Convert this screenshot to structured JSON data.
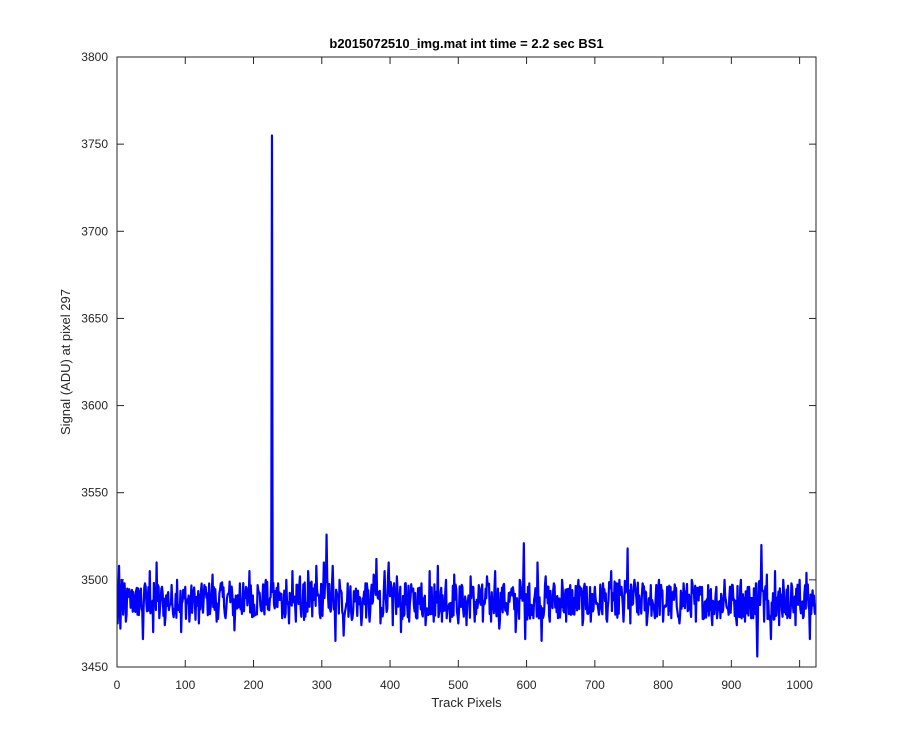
{
  "chart_data": {
    "type": "line",
    "title": "b2015072510_img.mat int time = 2.2 sec   BS1",
    "xlabel": "Track Pixels",
    "ylabel": "Signal (ADU) at pixel 297",
    "xlim": [
      0,
      1024
    ],
    "ylim": [
      3450,
      3800
    ],
    "xticks": [
      0,
      100,
      200,
      300,
      400,
      500,
      600,
      700,
      800,
      900,
      1000
    ],
    "yticks": [
      3450,
      3500,
      3550,
      3600,
      3650,
      3700,
      3750,
      3800
    ],
    "grid": false,
    "legend": "none",
    "colors": {
      "series": "#0000ff",
      "axes": "#262626",
      "background": "#ffffff"
    },
    "series": [
      {
        "n_points": 1024,
        "baseline": 3488,
        "noise_spread": 13,
        "points": [
          [
            0,
            3488
          ],
          [
            1,
            3475
          ],
          [
            3,
            3508
          ],
          [
            5,
            3472
          ],
          [
            7,
            3500
          ],
          [
            9,
            3480
          ],
          [
            11,
            3498
          ],
          [
            13,
            3476
          ],
          [
            16,
            3490
          ],
          [
            20,
            3484
          ],
          [
            24,
            3493
          ],
          [
            30,
            3480
          ],
          [
            35,
            3495
          ],
          [
            38,
            3466
          ],
          [
            41,
            3498
          ],
          [
            44,
            3482
          ],
          [
            48,
            3505
          ],
          [
            53,
            3470
          ],
          [
            58,
            3510
          ],
          [
            62,
            3478
          ],
          [
            66,
            3496
          ],
          [
            70,
            3474
          ],
          [
            75,
            3493
          ],
          [
            82,
            3481
          ],
          [
            88,
            3500
          ],
          [
            94,
            3470
          ],
          [
            100,
            3496
          ],
          [
            106,
            3476
          ],
          [
            112,
            3493
          ],
          [
            120,
            3475
          ],
          [
            128,
            3497
          ],
          [
            134,
            3482
          ],
          [
            140,
            3503
          ],
          [
            146,
            3476
          ],
          [
            152,
            3498
          ],
          [
            158,
            3480
          ],
          [
            165,
            3499
          ],
          [
            172,
            3471
          ],
          [
            180,
            3498
          ],
          [
            186,
            3482
          ],
          [
            194,
            3505
          ],
          [
            200,
            3479
          ],
          [
            206,
            3497
          ],
          [
            212,
            3482
          ],
          [
            218,
            3500
          ],
          [
            222,
            3484
          ],
          [
            225,
            3490
          ],
          [
            226,
            3500
          ],
          [
            227,
            3755
          ],
          [
            228,
            3493
          ],
          [
            230,
            3486
          ],
          [
            236,
            3498
          ],
          [
            242,
            3478
          ],
          [
            248,
            3500
          ],
          [
            252,
            3475
          ],
          [
            257,
            3505
          ],
          [
            262,
            3476
          ],
          [
            268,
            3502
          ],
          [
            274,
            3477
          ],
          [
            280,
            3505
          ],
          [
            286,
            3479
          ],
          [
            292,
            3508
          ],
          [
            298,
            3478
          ],
          [
            303,
            3510
          ],
          [
            307,
            3526
          ],
          [
            310,
            3484
          ],
          [
            316,
            3508
          ],
          [
            320,
            3465
          ],
          [
            326,
            3500
          ],
          [
            332,
            3468
          ],
          [
            338,
            3498
          ],
          [
            344,
            3477
          ],
          [
            350,
            3495
          ],
          [
            358,
            3474
          ],
          [
            364,
            3498
          ],
          [
            370,
            3476
          ],
          [
            376,
            3503
          ],
          [
            380,
            3512
          ],
          [
            386,
            3475
          ],
          [
            392,
            3505
          ],
          [
            398,
            3510
          ],
          [
            404,
            3474
          ],
          [
            410,
            3502
          ],
          [
            416,
            3470
          ],
          [
            422,
            3498
          ],
          [
            428,
            3476
          ],
          [
            434,
            3495
          ],
          [
            440,
            3478
          ],
          [
            446,
            3498
          ],
          [
            452,
            3474
          ],
          [
            458,
            3505
          ],
          [
            464,
            3476
          ],
          [
            470,
            3508
          ],
          [
            476,
            3476
          ],
          [
            482,
            3500
          ],
          [
            488,
            3476
          ],
          [
            494,
            3503
          ],
          [
            500,
            3475
          ],
          [
            506,
            3496
          ],
          [
            512,
            3474
          ],
          [
            518,
            3502
          ],
          [
            524,
            3476
          ],
          [
            530,
            3497
          ],
          [
            536,
            3476
          ],
          [
            542,
            3502
          ],
          [
            548,
            3476
          ],
          [
            554,
            3505
          ],
          [
            560,
            3472
          ],
          [
            566,
            3497
          ],
          [
            572,
            3480
          ],
          [
            578,
            3495
          ],
          [
            584,
            3470
          ],
          [
            590,
            3500
          ],
          [
            594,
            3488
          ],
          [
            596,
            3521
          ],
          [
            598,
            3466
          ],
          [
            604,
            3498
          ],
          [
            610,
            3478
          ],
          [
            616,
            3510
          ],
          [
            622,
            3465
          ],
          [
            628,
            3502
          ],
          [
            634,
            3476
          ],
          [
            640,
            3498
          ],
          [
            646,
            3478
          ],
          [
            652,
            3500
          ],
          [
            658,
            3476
          ],
          [
            664,
            3497
          ],
          [
            670,
            3480
          ],
          [
            676,
            3500
          ],
          [
            682,
            3474
          ],
          [
            688,
            3496
          ],
          [
            694,
            3476
          ],
          [
            700,
            3496
          ],
          [
            706,
            3480
          ],
          [
            712,
            3498
          ],
          [
            718,
            3476
          ],
          [
            724,
            3505
          ],
          [
            730,
            3480
          ],
          [
            736,
            3500
          ],
          [
            742,
            3476
          ],
          [
            748,
            3518
          ],
          [
            752,
            3475
          ],
          [
            758,
            3500
          ],
          [
            764,
            3480
          ],
          [
            770,
            3498
          ],
          [
            776,
            3474
          ],
          [
            782,
            3497
          ],
          [
            788,
            3478
          ],
          [
            794,
            3500
          ],
          [
            800,
            3476
          ],
          [
            806,
            3496
          ],
          [
            812,
            3478
          ],
          [
            818,
            3495
          ],
          [
            824,
            3475
          ],
          [
            830,
            3498
          ],
          [
            836,
            3482
          ],
          [
            842,
            3500
          ],
          [
            848,
            3476
          ],
          [
            854,
            3496
          ],
          [
            860,
            3478
          ],
          [
            866,
            3497
          ],
          [
            872,
            3474
          ],
          [
            878,
            3496
          ],
          [
            884,
            3478
          ],
          [
            890,
            3500
          ],
          [
            896,
            3480
          ],
          [
            902,
            3497
          ],
          [
            908,
            3474
          ],
          [
            914,
            3500
          ],
          [
            920,
            3476
          ],
          [
            926,
            3496
          ],
          [
            932,
            3478
          ],
          [
            936,
            3498
          ],
          [
            938,
            3456
          ],
          [
            940,
            3498
          ],
          [
            944,
            3520
          ],
          [
            948,
            3476
          ],
          [
            952,
            3503
          ],
          [
            958,
            3466
          ],
          [
            964,
            3505
          ],
          [
            970,
            3474
          ],
          [
            976,
            3500
          ],
          [
            982,
            3478
          ],
          [
            988,
            3498
          ],
          [
            994,
            3474
          ],
          [
            1000,
            3500
          ],
          [
            1005,
            3478
          ],
          [
            1010,
            3504
          ],
          [
            1015,
            3466
          ],
          [
            1019,
            3494
          ],
          [
            1023,
            3480
          ]
        ]
      }
    ]
  }
}
